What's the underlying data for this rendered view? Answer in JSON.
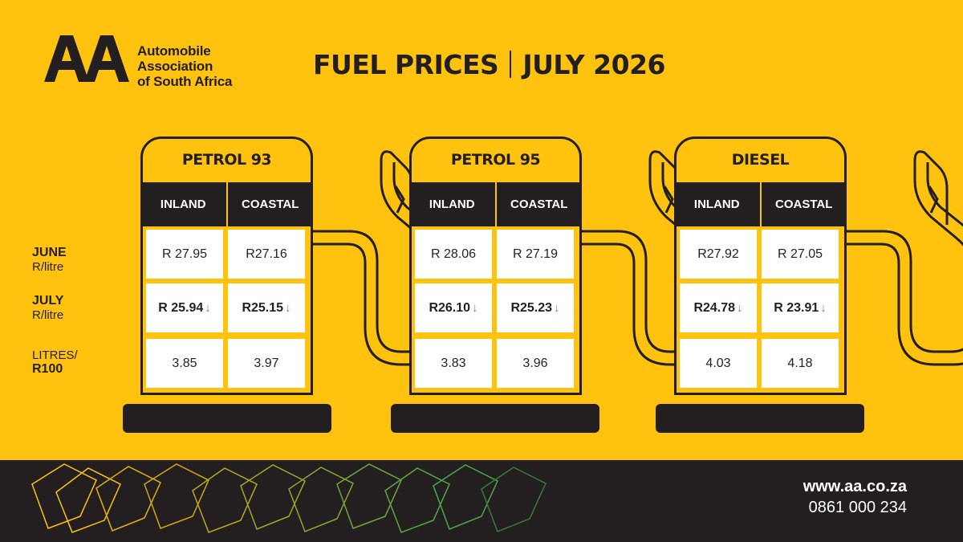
{
  "logo": {
    "mark_text": "AA",
    "lines": [
      "Automobile",
      "Association",
      "of South Africa"
    ]
  },
  "headline": {
    "left": "FUEL PRICES",
    "right": "JULY 2026"
  },
  "row_labels": {
    "june": {
      "title": "JUNE",
      "unit": "R/litre"
    },
    "july": {
      "title": "JULY",
      "unit": "R/litre"
    },
    "litres": {
      "title": "LITRES/",
      "unit": "R100"
    }
  },
  "columns": [
    "INLAND",
    "COASTAL"
  ],
  "pumps": [
    {
      "name": "PETROL 93",
      "june": [
        "R 27.95",
        "R27.16"
      ],
      "july": [
        "R 25.94",
        "R25.15"
      ],
      "litres": [
        "3.85",
        "3.97"
      ]
    },
    {
      "name": "PETROL 95",
      "june": [
        "R 28.06",
        "R 27.19"
      ],
      "july": [
        "R26.10",
        "R25.23"
      ],
      "litres": [
        "3.83",
        "3.96"
      ]
    },
    {
      "name": "DIESEL",
      "june": [
        "R27.92",
        "R 27.05"
      ],
      "july": [
        "R24.78",
        "R 23.91"
      ],
      "litres": [
        "4.03",
        "4.18"
      ]
    }
  ],
  "arrow_symbol": "↓",
  "footer": {
    "url": "www.aa.co.za",
    "phone": "0861 000 234"
  },
  "colors": {
    "background": "#FFC20E",
    "dark": "#231F20",
    "down_arrow": "#4AA84B"
  }
}
